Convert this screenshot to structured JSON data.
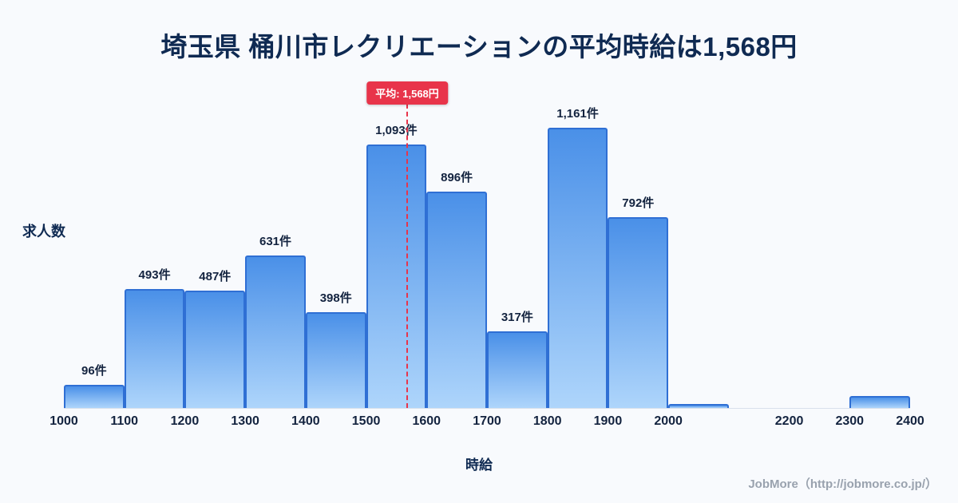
{
  "title": "埼玉県 桶川市レクリエーションの平均時給は1,568円",
  "footer": {
    "credit": "JobMore（http://jobmore.co.jp/）"
  },
  "chart_data": {
    "type": "bar",
    "title": "埼玉県 桶川市レクリエーションの平均時給は1,568円",
    "xlabel": "時給",
    "ylabel": "求人数",
    "x_range": [
      1000,
      2400
    ],
    "ylim": [
      0,
      1300
    ],
    "grid": false,
    "legend": "none",
    "x_ticks": [
      1000,
      1100,
      1200,
      1300,
      1400,
      1500,
      1600,
      1700,
      1800,
      1900,
      2000,
      2200,
      2300,
      2400
    ],
    "bars": [
      {
        "start": 1000,
        "end": 1100,
        "value": 96,
        "label": "96件"
      },
      {
        "start": 1100,
        "end": 1200,
        "value": 493,
        "label": "493件"
      },
      {
        "start": 1200,
        "end": 1300,
        "value": 487,
        "label": "487件"
      },
      {
        "start": 1300,
        "end": 1400,
        "value": 631,
        "label": "631件"
      },
      {
        "start": 1400,
        "end": 1500,
        "value": 398,
        "label": "398件"
      },
      {
        "start": 1500,
        "end": 1600,
        "value": 1093,
        "label": "1,093件"
      },
      {
        "start": 1600,
        "end": 1700,
        "value": 896,
        "label": "896件"
      },
      {
        "start": 1700,
        "end": 1800,
        "value": 317,
        "label": "317件"
      },
      {
        "start": 1800,
        "end": 1900,
        "value": 1161,
        "label": "1,161件"
      },
      {
        "start": 1900,
        "end": 2000,
        "value": 792,
        "label": "792件"
      },
      {
        "start": 2000,
        "end": 2100,
        "value": 16,
        "label": ""
      },
      {
        "start": 2300,
        "end": 2400,
        "value": 50,
        "label": ""
      }
    ],
    "average_line": {
      "x": 1568,
      "label": "平均: 1,568円"
    },
    "colors": {
      "accent": "#e8344a",
      "bar_top": "#4a90e8",
      "bar_bottom": "#aed5fb",
      "bar_border": "#2f6fd4",
      "text": "#0f2a52"
    }
  }
}
